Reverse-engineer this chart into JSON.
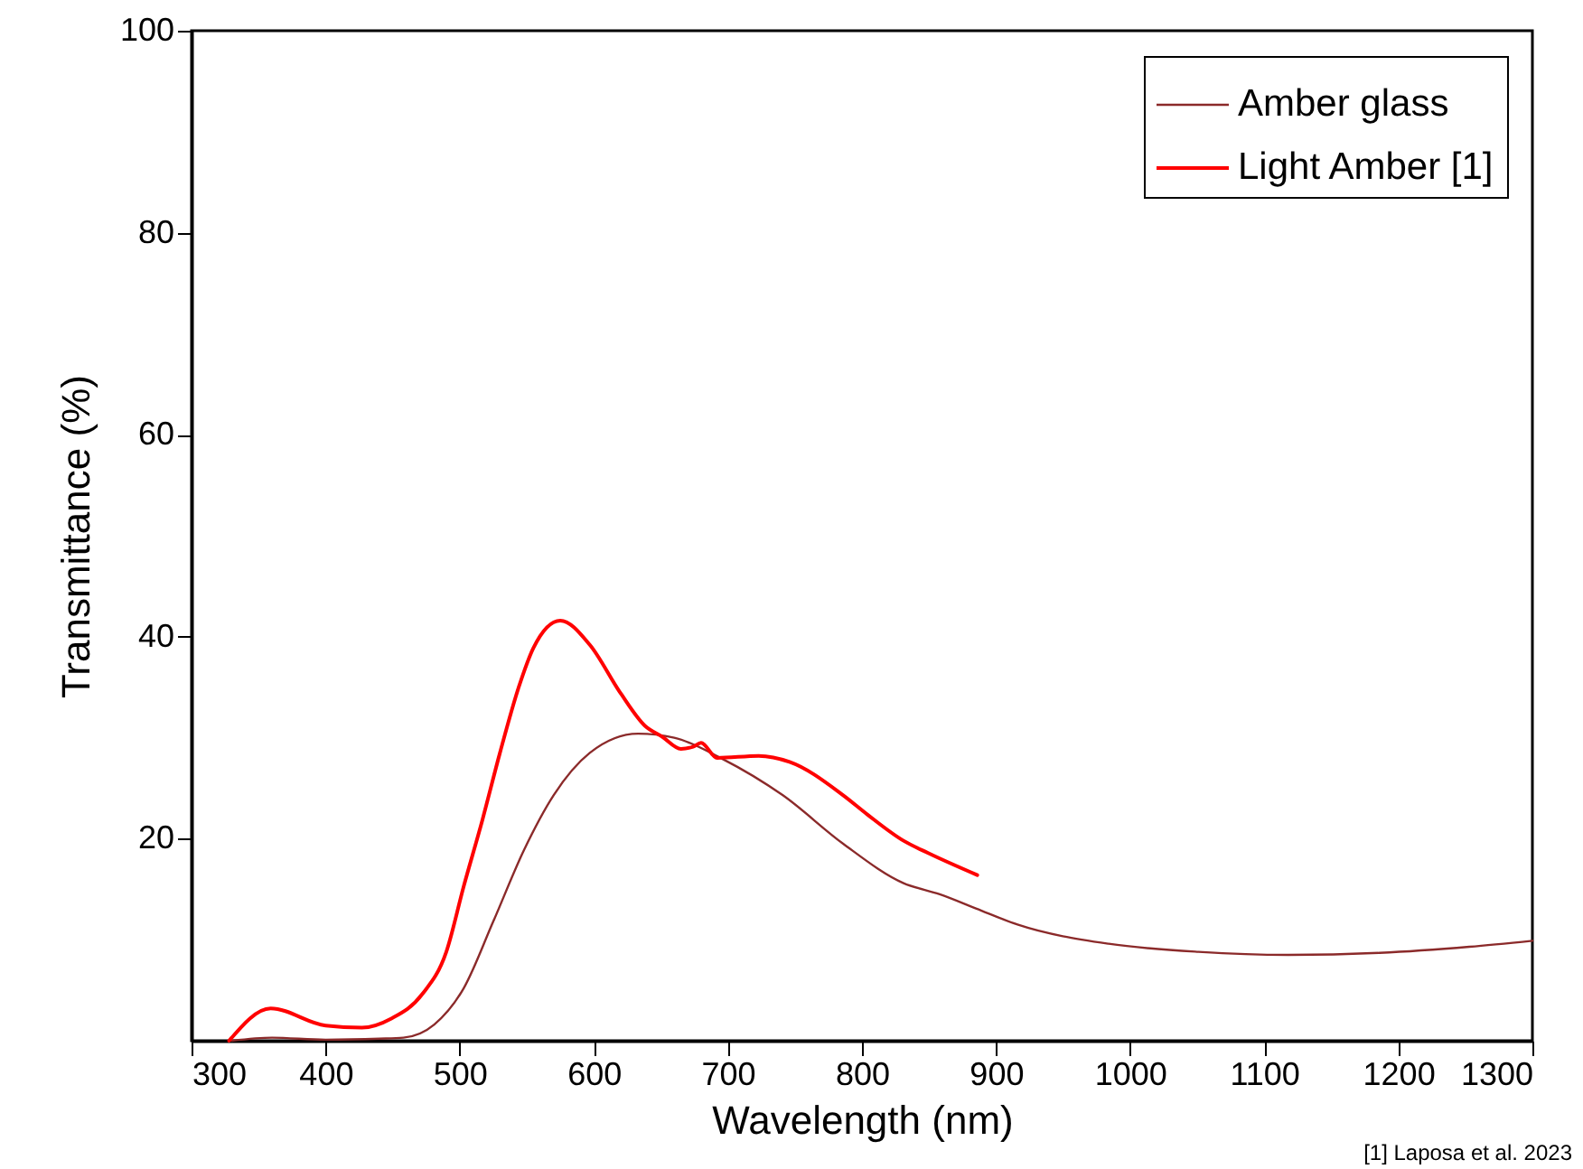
{
  "chart_data": {
    "type": "line",
    "xlabel": "Wavelength (nm)",
    "ylabel": "Transmittance (%)",
    "xlim": [
      300,
      1300
    ],
    "xticks": [
      300,
      400,
      500,
      600,
      700,
      800,
      900,
      1000,
      1100,
      1200,
      1300
    ],
    "ylim": [
      0,
      100
    ],
    "yticks": [
      20,
      40,
      60,
      80,
      100
    ],
    "grid": false,
    "legend": "top right",
    "annotations": [
      "[1] Laposa et al. 2023"
    ],
    "series": [
      {
        "name": "Amber glass",
        "color": "#8b2a2a",
        "x": [
          330,
          360,
          400,
          440,
          458,
          481,
          503,
          525,
          548,
          570,
          597,
          633,
          660,
          696,
          741,
          786,
          831,
          858,
          885,
          916,
          984,
          1051,
          1118,
          1186,
          1253,
          1300
        ],
        "values": [
          0,
          0.3,
          0.1,
          0.2,
          0.3,
          1.6,
          5.2,
          11.8,
          18.9,
          24.3,
          28.5,
          30.4,
          30.0,
          27.9,
          24.3,
          19.5,
          15.6,
          14.5,
          13.1,
          11.5,
          9.6,
          8.8,
          8.5,
          8.7,
          9.3,
          9.9
        ]
      },
      {
        "name": "Light Amber [1]",
        "color": "#ff0000",
        "x": [
          328,
          359,
          400,
          427,
          449,
          472,
          490,
          503,
          517,
          530,
          544,
          555,
          575,
          597,
          620,
          638,
          651,
          665,
          674,
          680,
          692,
          723,
          746,
          786,
          804,
          831,
          849,
          886
        ],
        "values": [
          0,
          3.2,
          1.5,
          1.3,
          2.2,
          4.6,
          8.8,
          15.3,
          21.9,
          28.5,
          35.0,
          38.9,
          41.6,
          39.2,
          34.4,
          31.2,
          30.1,
          28.9,
          29.1,
          29.5,
          28.0,
          28.2,
          27.6,
          24.3,
          22.4,
          19.8,
          18.6,
          16.4
        ]
      }
    ]
  }
}
